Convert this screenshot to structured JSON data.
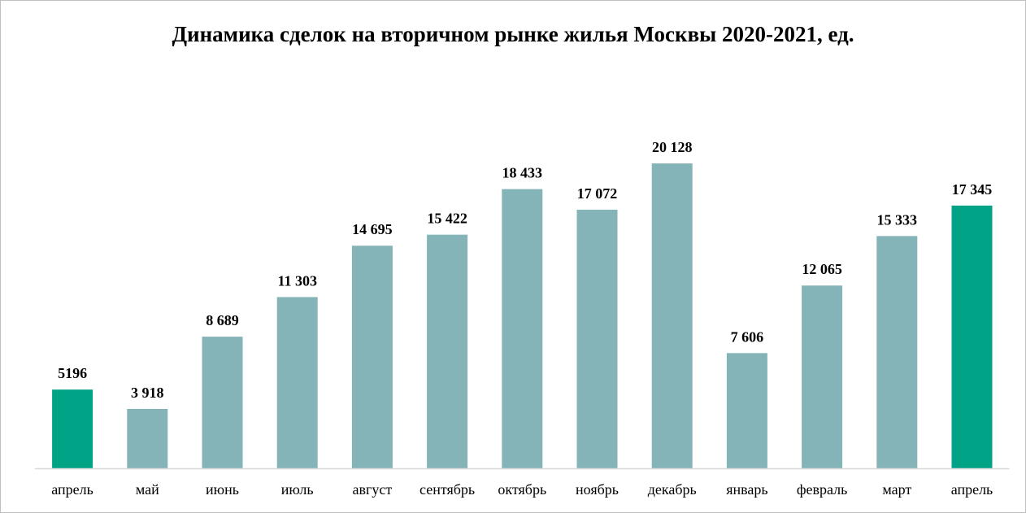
{
  "chart_data": {
    "type": "bar",
    "title": "Динамика сделок на вторичном рынке жилья Москвы 2020-2021, ед.",
    "categories": [
      "апрель",
      "май",
      "июнь",
      "июль",
      "август",
      "сентябрь",
      "октябрь",
      "ноябрь",
      "декабрь",
      "январь",
      "февраль",
      "март",
      "апрель"
    ],
    "values": [
      5196,
      3918,
      8689,
      11303,
      14695,
      15422,
      18433,
      17072,
      20128,
      7606,
      12065,
      15333,
      17345
    ],
    "value_labels": [
      "5196",
      "3 918",
      "8 689",
      "11 303",
      "14 695",
      "15 422",
      "18 433",
      "17 072",
      "20 128",
      "7 606",
      "12 065",
      "15 333",
      "17 345"
    ],
    "highlight_indices": [
      0,
      12
    ],
    "colors": {
      "bar": "#85B4B8",
      "highlight": "#00A386",
      "axis": "#D9D9D9"
    },
    "xlabel": "",
    "ylabel": "",
    "ylim": [
      0,
      20128
    ],
    "grid": false,
    "legend": "none"
  }
}
